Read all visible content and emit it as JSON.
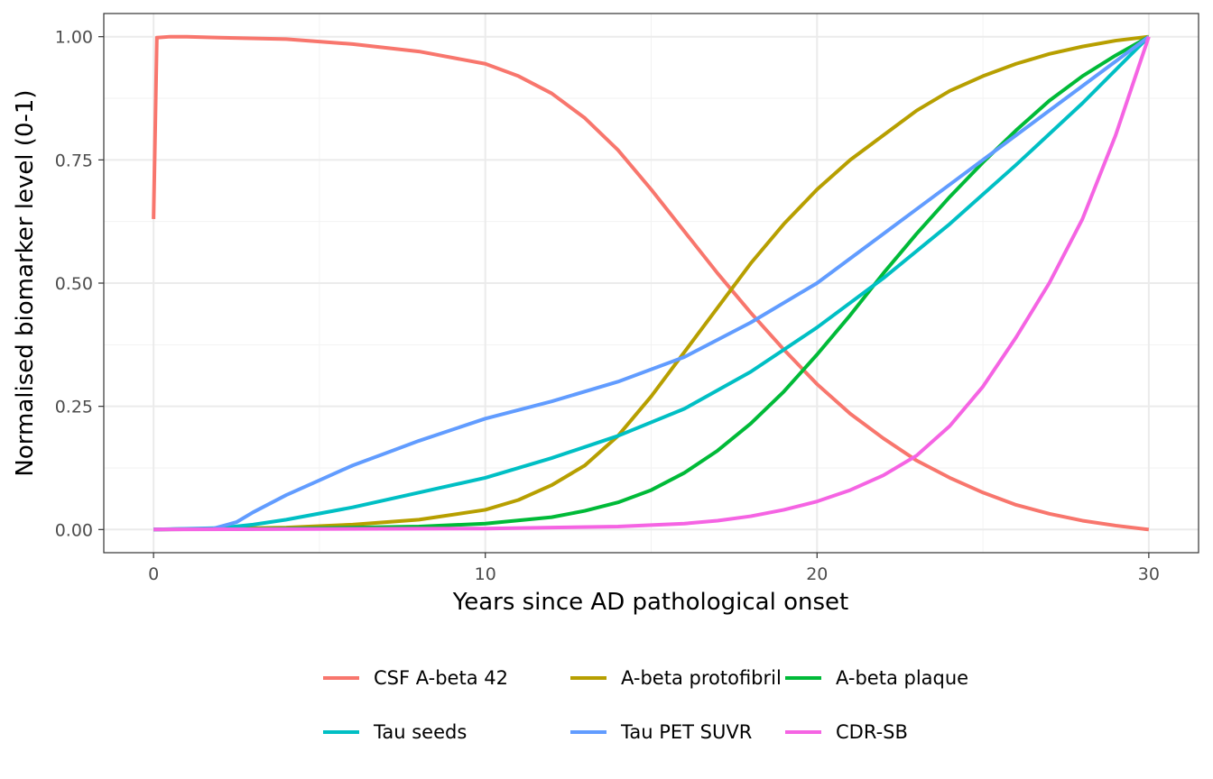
{
  "chart_data": {
    "type": "line",
    "title": "",
    "xlabel": "Years since AD pathological onset",
    "ylabel": "Normalised biomarker level (0-1)",
    "xlim": [
      -1.5,
      31.5
    ],
    "ylim": [
      -0.047,
      1.047
    ],
    "x_ticks": [
      0,
      10,
      20,
      30
    ],
    "x_tick_labels": [
      "0",
      "10",
      "20",
      "30"
    ],
    "y_ticks": [
      0,
      0.25,
      0.5,
      0.75,
      1
    ],
    "y_tick_labels": [
      "0.00",
      "0.25",
      "0.50",
      "0.75",
      "1.00"
    ],
    "grid": true,
    "legend_position": "bottom",
    "series": [
      {
        "name": "CSF A-beta 42",
        "color": "#F8766D",
        "x": [
          0,
          0.1,
          0.5,
          1,
          2,
          4,
          6,
          8,
          10,
          11,
          12,
          13,
          14,
          15,
          16,
          17,
          18,
          19,
          20,
          21,
          22,
          23,
          24,
          25,
          26,
          27,
          28,
          29,
          30
        ],
        "y": [
          0.63,
          0.998,
          1.0,
          1.0,
          0.998,
          0.995,
          0.985,
          0.97,
          0.945,
          0.92,
          0.885,
          0.835,
          0.77,
          0.69,
          0.605,
          0.52,
          0.44,
          0.365,
          0.295,
          0.235,
          0.185,
          0.14,
          0.105,
          0.075,
          0.05,
          0.032,
          0.018,
          0.008,
          0.0
        ]
      },
      {
        "name": "A-beta protofibril",
        "color": "#B79F00",
        "x": [
          0,
          2,
          4,
          6,
          8,
          10,
          11,
          12,
          13,
          14,
          15,
          16,
          17,
          18,
          19,
          20,
          21,
          22,
          23,
          24,
          25,
          26,
          27,
          28,
          29,
          30
        ],
        "y": [
          0.0,
          0.002,
          0.004,
          0.01,
          0.02,
          0.04,
          0.06,
          0.09,
          0.13,
          0.19,
          0.27,
          0.36,
          0.45,
          0.54,
          0.62,
          0.69,
          0.75,
          0.8,
          0.85,
          0.89,
          0.92,
          0.945,
          0.965,
          0.98,
          0.992,
          1.0
        ]
      },
      {
        "name": "A-beta plaque",
        "color": "#00BA38",
        "x": [
          0,
          4,
          8,
          10,
          12,
          13,
          14,
          15,
          16,
          17,
          18,
          19,
          20,
          21,
          22,
          23,
          24,
          25,
          26,
          27,
          28,
          29,
          30
        ],
        "y": [
          0.0,
          0.002,
          0.006,
          0.012,
          0.025,
          0.038,
          0.055,
          0.08,
          0.115,
          0.16,
          0.215,
          0.28,
          0.355,
          0.435,
          0.52,
          0.6,
          0.675,
          0.745,
          0.81,
          0.87,
          0.92,
          0.962,
          1.0
        ]
      },
      {
        "name": "Tau seeds",
        "color": "#00BFC4",
        "x": [
          0,
          2,
          3,
          4,
          6,
          8,
          10,
          12,
          14,
          16,
          18,
          20,
          22,
          24,
          26,
          28,
          30
        ],
        "y": [
          0.0,
          0.003,
          0.01,
          0.02,
          0.045,
          0.075,
          0.105,
          0.145,
          0.19,
          0.245,
          0.32,
          0.41,
          0.51,
          0.62,
          0.74,
          0.865,
          1.0
        ]
      },
      {
        "name": "Tau PET SUVR",
        "color": "#619CFF",
        "x": [
          0,
          1,
          1.8,
          2.5,
          3,
          4,
          5,
          6,
          7,
          8,
          10,
          12,
          14,
          16,
          18,
          20,
          22,
          24,
          26,
          28,
          30
        ],
        "y": [
          0.0,
          0.001,
          0.002,
          0.015,
          0.035,
          0.07,
          0.1,
          0.13,
          0.155,
          0.18,
          0.225,
          0.26,
          0.3,
          0.35,
          0.42,
          0.5,
          0.6,
          0.7,
          0.8,
          0.9,
          1.0
        ]
      },
      {
        "name": "CDR-SB",
        "color": "#F564E3",
        "x": [
          0,
          10,
          14,
          16,
          17,
          18,
          19,
          20,
          21,
          22,
          23,
          24,
          25,
          26,
          27,
          28,
          29,
          30
        ],
        "y": [
          0.0,
          0.002,
          0.006,
          0.012,
          0.018,
          0.027,
          0.04,
          0.057,
          0.08,
          0.11,
          0.15,
          0.21,
          0.29,
          0.39,
          0.5,
          0.63,
          0.8,
          1.0
        ]
      }
    ]
  }
}
